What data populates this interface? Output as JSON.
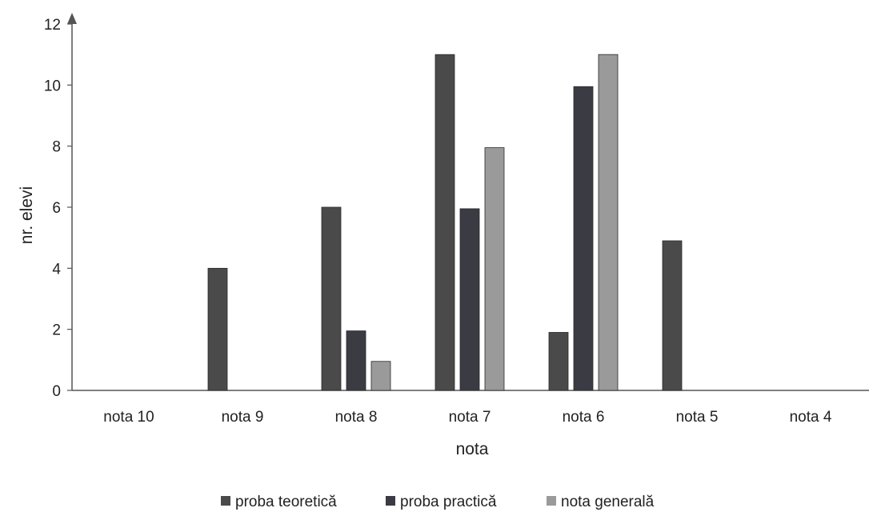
{
  "chart_data": {
    "type": "bar",
    "categories": [
      "nota 10",
      "nota 9",
      "nota  8",
      "nota 7",
      "nota 6",
      "nota 5",
      "nota 4"
    ],
    "series": [
      {
        "name": "proba teoretică",
        "values": [
          0,
          4,
          6,
          11,
          1.9,
          4.9,
          0
        ],
        "color": "#4a4a4a"
      },
      {
        "name": "proba practică",
        "values": [
          0,
          0,
          1.95,
          5.95,
          9.95,
          0,
          0
        ],
        "color": "#3b3b44"
      },
      {
        "name": "nota generală",
        "values": [
          0,
          0,
          0.95,
          7.95,
          11,
          0,
          0
        ],
        "color": "#9a9a9a"
      }
    ],
    "xlabel": "nota",
    "ylabel": "nr. elevi",
    "ylim": [
      0,
      12
    ],
    "yticks": [
      "0",
      "2",
      "4",
      "6",
      "8",
      "10",
      "12"
    ],
    "grid": false,
    "legend": "bottom"
  }
}
